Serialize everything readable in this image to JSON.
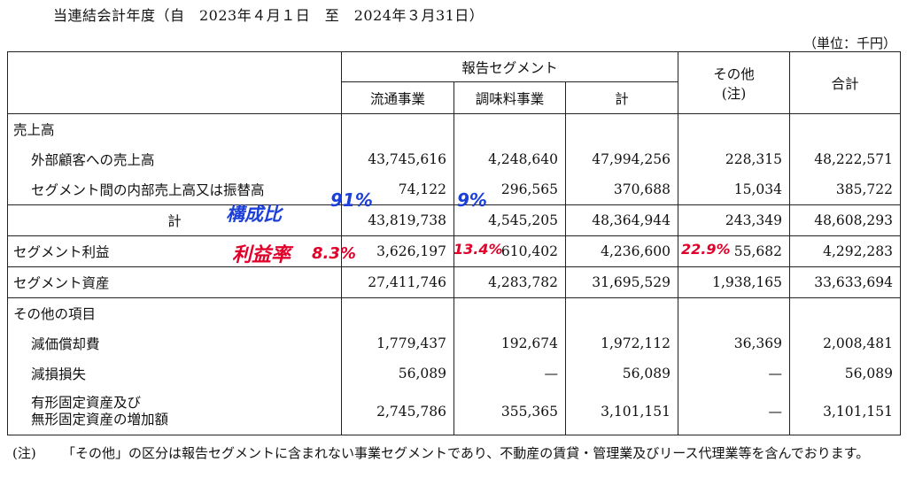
{
  "period": "当連結会計年度（自　2023年４月１日　至　2024年３月31日）",
  "unit": "（単位：千円）",
  "headers": {
    "reported_segments": "報告セグメント",
    "distribution": "流通事業",
    "seasoning": "調味料事業",
    "subtotal": "計",
    "other_line1": "その他",
    "other_line2": "(注)",
    "total": "合計"
  },
  "rows": {
    "sales": {
      "label": "売上高"
    },
    "external": {
      "label": "外部顧客への売上高",
      "values": [
        "43,745,616",
        "4,248,640",
        "47,994,256",
        "228,315",
        "48,222,571"
      ]
    },
    "intersegment": {
      "label": "セグメント間の内部売上高又は振替高",
      "values": [
        "74,122",
        "296,565",
        "370,688",
        "15,034",
        "385,722"
      ]
    },
    "sales_total": {
      "label": "計",
      "values": [
        "43,819,738",
        "4,545,205",
        "48,364,944",
        "243,349",
        "48,608,293"
      ]
    },
    "profit": {
      "label": "セグメント利益",
      "values": [
        "3,626,197",
        "610,402",
        "4,236,600",
        "55,682",
        "4,292,283"
      ]
    },
    "assets": {
      "label": "セグメント資産",
      "values": [
        "27,411,746",
        "4,283,782",
        "31,695,529",
        "1,938,165",
        "33,633,694"
      ]
    },
    "other_items": {
      "label": "その他の項目"
    },
    "depreciation": {
      "label": "減価償却費",
      "values": [
        "1,779,437",
        "192,674",
        "1,972,112",
        "36,369",
        "2,008,481"
      ]
    },
    "impairment": {
      "label": "減損損失",
      "values": [
        "56,089",
        "—",
        "56,089",
        "—",
        "56,089"
      ]
    },
    "capex": {
      "label_line1": "有形固定資産及び",
      "label_line2": "無形固定資産の増加額",
      "values": [
        "2,745,786",
        "355,365",
        "3,101,151",
        "—",
        "3,101,151"
      ]
    }
  },
  "note": {
    "mark": "(注)",
    "text": "「その他」の区分は報告セグメントに含まれない事業セグメントであり、不動産の賃貸・管理業及びリース代理業等を含んでおります。"
  },
  "handwriting": {
    "composition_label": "構成比",
    "composition_dist": "91%",
    "composition_seas": "9%",
    "margin_label": "利益率",
    "margin_dist": "8.3%",
    "margin_seas": "13.4%",
    "margin_other": "22.9%"
  },
  "colors": {
    "ink_red": "#e0002a",
    "ink_blue": "#1c3fd8",
    "rule": "#222222"
  }
}
